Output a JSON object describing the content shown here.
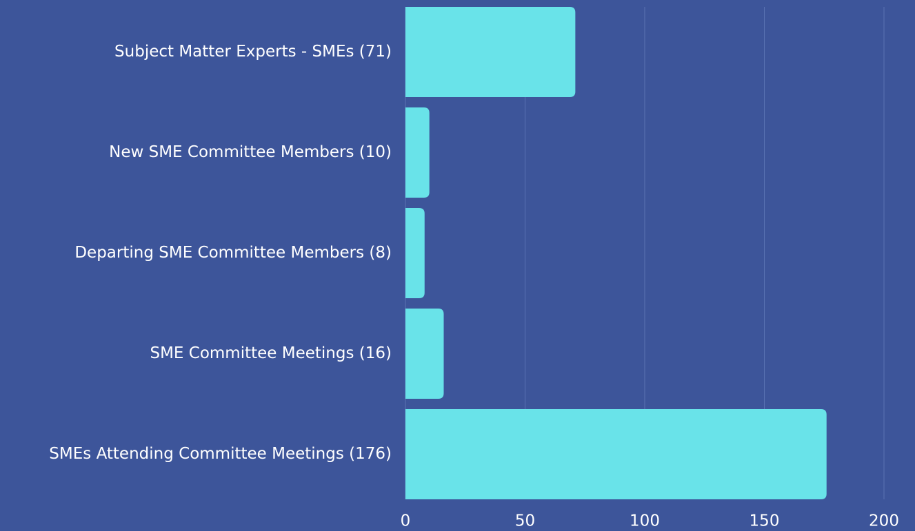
{
  "chart_data": {
    "type": "bar",
    "orientation": "horizontal",
    "categories": [
      "Subject Matter Experts - SMEs (71)",
      "New SME Committee Members (10)",
      "Departing SME Committee Members (8)",
      "SME Committee Meetings (16)",
      "SMEs Attending Committee Meetings (176)"
    ],
    "values": [
      71,
      10,
      8,
      16,
      176
    ],
    "color": "#69e3e9",
    "xlim": [
      0,
      200
    ],
    "xticks": [
      0,
      50,
      100,
      150,
      200
    ],
    "grid": true
  }
}
